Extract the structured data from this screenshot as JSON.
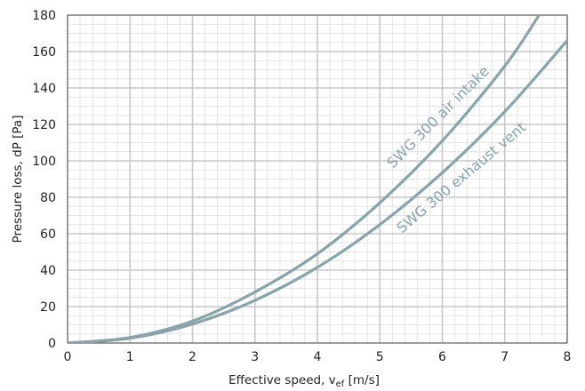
{
  "chart_data": {
    "type": "line",
    "xlabel": "Effective speed, v",
    "xlabel_sub": "ef",
    "xlabel_unit": " [m/s]",
    "ylabel": "Pressure loss, dP [Pa]",
    "xlim": [
      0,
      8
    ],
    "ylim": [
      0,
      180
    ],
    "x_ticks": [
      0,
      1,
      2,
      3,
      4,
      5,
      6,
      7,
      8
    ],
    "y_ticks": [
      0,
      20,
      40,
      60,
      80,
      100,
      120,
      140,
      160,
      180
    ],
    "grid": true,
    "colors": {
      "series": "#86a4aa",
      "grid_major": "#c8c8c8",
      "grid_minor": "#e4e4e4",
      "axis": "#555555"
    },
    "series": [
      {
        "name": "SWG 300 air intake",
        "x": [
          0,
          1,
          2,
          3,
          4,
          5,
          6,
          7,
          7.55
        ],
        "y": [
          0,
          3,
          12,
          28,
          49,
          77,
          111,
          152,
          180
        ]
      },
      {
        "name": "SWG 300 exhaust vent",
        "x": [
          0,
          1,
          2,
          3,
          4,
          5,
          6,
          7,
          8
        ],
        "y": [
          0,
          2.6,
          10.4,
          23.4,
          41.5,
          65,
          93.5,
          127,
          166
        ]
      }
    ]
  }
}
